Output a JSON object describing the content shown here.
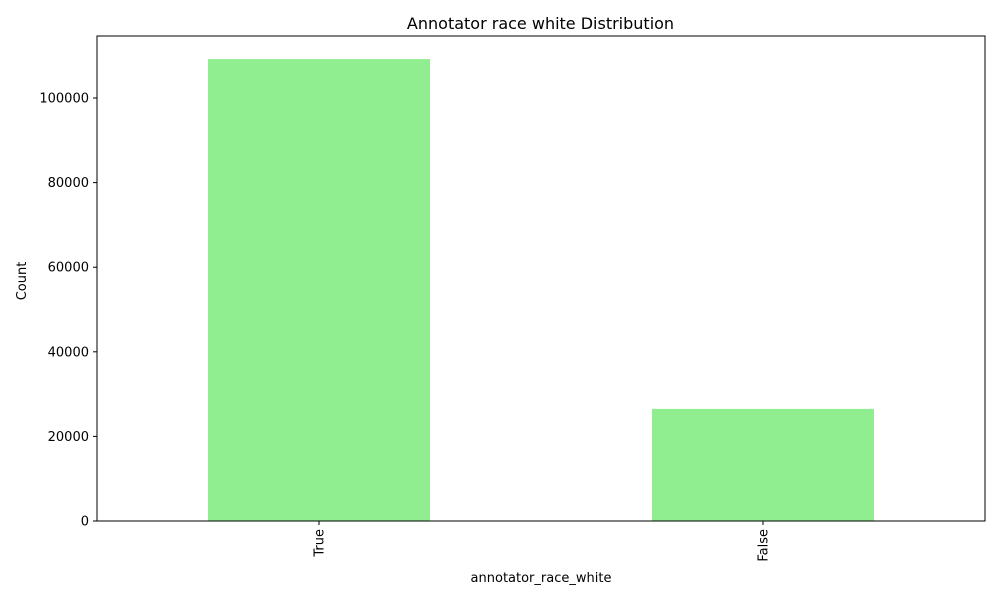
{
  "chart_data": {
    "type": "bar",
    "title": "Annotator race white Distribution",
    "xlabel": "annotator_race_white",
    "ylabel": "Count",
    "categories": [
      "True",
      "False"
    ],
    "values": [
      109200,
      26500
    ],
    "ylim": [
      0,
      114660
    ],
    "yticks": [
      0,
      20000,
      40000,
      60000,
      80000,
      100000
    ],
    "ytick_labels": [
      "0",
      "20000",
      "40000",
      "60000",
      "80000",
      "100000"
    ],
    "bar_color": "#90ee90",
    "grid": false,
    "legend": "none"
  }
}
